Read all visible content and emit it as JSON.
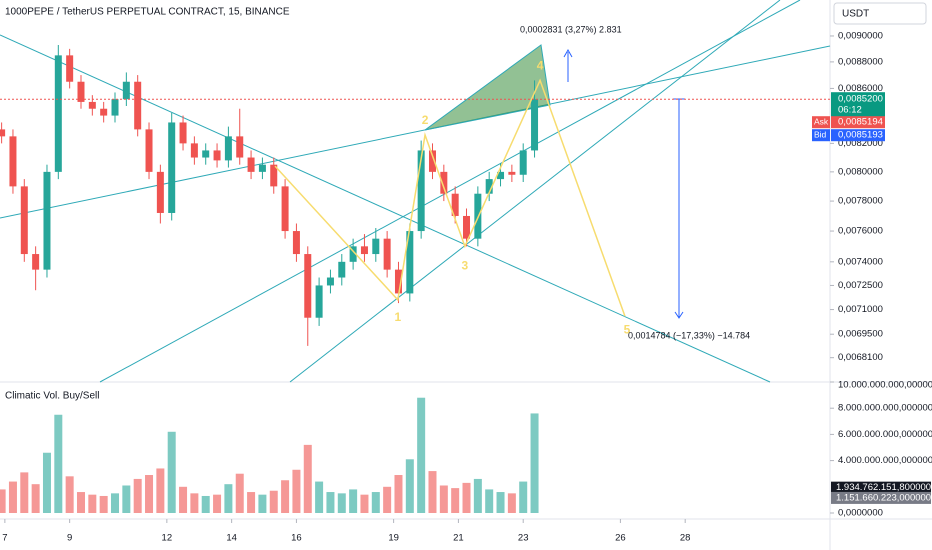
{
  "ui": {
    "currency": "USDT"
  },
  "chart_data": [
    {
      "type": "candlestick",
      "title": "1000PEPE / TetherUS PERPETUAL CONTRACT, 15, BINANCE",
      "x": [
        6.9,
        7.25,
        7.6,
        7.95,
        8.3,
        8.65,
        9.0,
        9.35,
        9.7,
        10.05,
        10.4,
        10.75,
        11.1,
        11.45,
        11.8,
        12.15,
        12.5,
        12.85,
        13.2,
        13.55,
        13.9,
        14.25,
        14.6,
        14.95,
        15.3,
        15.65,
        16.0,
        16.35,
        16.7,
        17.05,
        17.4,
        17.75,
        18.1,
        18.45,
        18.8,
        19.15,
        19.5,
        19.85,
        20.2,
        20.55,
        20.9,
        21.25,
        21.6,
        21.95,
        22.3,
        22.65,
        23.0,
        23.35
      ],
      "open": [
        0.0083,
        0.00825,
        0.0079,
        0.00745,
        0.00735,
        0.008,
        0.00885,
        0.00865,
        0.0085,
        0.00845,
        0.0084,
        0.00852,
        0.00865,
        0.0083,
        0.008,
        0.00772,
        0.00835,
        0.0082,
        0.0081,
        0.00815,
        0.00808,
        0.00825,
        0.0081,
        0.008,
        0.00805,
        0.0079,
        0.0076,
        0.00745,
        0.00705,
        0.00725,
        0.0073,
        0.0074,
        0.0075,
        0.00745,
        0.00755,
        0.00735,
        0.0072,
        0.0076,
        0.00815,
        0.008,
        0.00785,
        0.0077,
        0.00755,
        0.00785,
        0.00795,
        0.008,
        0.00798,
        0.00815
      ],
      "high": [
        0.00835,
        0.0083,
        0.00795,
        0.0075,
        0.00805,
        0.00893,
        0.0089,
        0.0087,
        0.00855,
        0.0085,
        0.00857,
        0.00872,
        0.0087,
        0.00835,
        0.00805,
        0.00842,
        0.0084,
        0.00825,
        0.0082,
        0.0082,
        0.00832,
        0.00845,
        0.00815,
        0.0081,
        0.0081,
        0.00795,
        0.00765,
        0.0075,
        0.0073,
        0.00735,
        0.00745,
        0.00755,
        0.00758,
        0.00762,
        0.0076,
        0.0074,
        0.00765,
        0.00822,
        0.0082,
        0.00805,
        0.0079,
        0.00775,
        0.0079,
        0.008,
        0.00806,
        0.00805,
        0.0082,
        0.00866
      ],
      "low": [
        0.0082,
        0.00785,
        0.0074,
        0.00722,
        0.0073,
        0.00795,
        0.0086,
        0.00845,
        0.0084,
        0.00835,
        0.00835,
        0.00847,
        0.00825,
        0.00795,
        0.00765,
        0.00767,
        0.00815,
        0.00805,
        0.00805,
        0.00803,
        0.00803,
        0.00805,
        0.00795,
        0.00795,
        0.00785,
        0.00755,
        0.0074,
        0.00688,
        0.007,
        0.0072,
        0.00725,
        0.00735,
        0.0074,
        0.0074,
        0.0073,
        0.00714,
        0.00715,
        0.00755,
        0.00795,
        0.0078,
        0.00765,
        0.0075,
        0.0075,
        0.0078,
        0.0079,
        0.00793,
        0.00793,
        0.0081
      ],
      "close": [
        0.00825,
        0.0079,
        0.00745,
        0.00735,
        0.008,
        0.00885,
        0.00865,
        0.0085,
        0.00845,
        0.0084,
        0.00852,
        0.00865,
        0.0083,
        0.008,
        0.00772,
        0.00835,
        0.0082,
        0.0081,
        0.00815,
        0.00808,
        0.00825,
        0.0081,
        0.008,
        0.00805,
        0.0079,
        0.0076,
        0.00745,
        0.00705,
        0.00725,
        0.0073,
        0.0074,
        0.0075,
        0.00745,
        0.00755,
        0.00735,
        0.0072,
        0.0076,
        0.00815,
        0.008,
        0.00785,
        0.0077,
        0.00755,
        0.00785,
        0.00795,
        0.008,
        0.00798,
        0.00815,
        0.00852
      ],
      "colors": {
        "up": "#26a69a",
        "down": "#ef5350"
      },
      "xlim": [
        6.85,
        32.47
      ],
      "ylim": [
        0.006668,
        0.009285
      ],
      "log_scale": true,
      "grid": false,
      "yticks": [
        {
          "value": 0.009,
          "label": "0,0090000"
        },
        {
          "value": 0.0088,
          "label": "0,0088000"
        },
        {
          "value": 0.0086,
          "label": "0,0086000"
        },
        {
          "value": 0.0082,
          "label": "0,0082000"
        },
        {
          "value": 0.008,
          "label": "0,0080000"
        },
        {
          "value": 0.0078,
          "label": "0,0078000"
        },
        {
          "value": 0.0076,
          "label": "0,0076000"
        },
        {
          "value": 0.0074,
          "label": "0,0074000"
        },
        {
          "value": 0.00725,
          "label": "0,0072500"
        },
        {
          "value": 0.0071,
          "label": "0,0071000"
        },
        {
          "value": 0.00695,
          "label": "0,0069500"
        },
        {
          "value": 0.00681,
          "label": "0,0068100"
        }
      ],
      "last_price": {
        "value": 0.00852,
        "label": "0,0085200",
        "countdown": "06:12",
        "color": "#089981"
      },
      "markers": [
        {
          "name": "Ask",
          "value": 0.0085194,
          "label": "0,0085194",
          "color": "#ef5350"
        },
        {
          "name": "Bid",
          "value": 0.0085193,
          "label": "0,0085193",
          "color": "#2962ff"
        }
      ],
      "wave": {
        "x": [
          15.34,
          19.13,
          19.97,
          21.2,
          23.52,
          26.14
        ],
        "y": [
          0.00804,
          0.00716,
          0.00826,
          0.0075,
          0.00866,
          0.00706
        ],
        "labels": [
          null,
          "1",
          "2",
          "3",
          "4",
          "5"
        ],
        "color": "#f7dc6f"
      },
      "annotations": [
        "0,0002831 (3,27%) 2.831",
        "0,0014784 (−17,33%) −14.784"
      ]
    },
    {
      "type": "bar",
      "title": "Climatic Vol. Buy/Sell",
      "values": [
        1800000000,
        2400000000,
        3100000000,
        2200000000,
        4600000000,
        7500000000,
        2800000000,
        1600000000,
        1400000000,
        1300000000,
        1500000000,
        2100000000,
        2600000000,
        2900000000,
        3400000000,
        6200000000,
        2000000000,
        1500000000,
        1300000000,
        1400000000,
        2200000000,
        3000000000,
        1600000000,
        1400000000,
        1700000000,
        2500000000,
        3300000000,
        5200000000,
        2400000000,
        1600000000,
        1500000000,
        1800000000,
        1400000000,
        1600000000,
        2000000000,
        2900000000,
        4100000000,
        8800000000,
        3200000000,
        2100000000,
        1900000000,
        2300000000,
        2600000000,
        1800000000,
        1600000000,
        1500000000,
        2400000000,
        7600000000
      ],
      "ylim": [
        0,
        10000000000
      ],
      "yticks": [
        {
          "value": 10000000000,
          "label": "10.000.000.000,0000000"
        },
        {
          "value": 8000000000,
          "label": "8.000.000.000,0000000"
        },
        {
          "value": 6000000000,
          "label": "6.000.000.000,0000000"
        },
        {
          "value": 4000000000,
          "label": "4.000.000.000,0000000"
        },
        {
          "value": 0,
          "label": "0,0000000"
        }
      ],
      "xticks": [
        7,
        9,
        12,
        14,
        16,
        19,
        21,
        23,
        26,
        28
      ],
      "markers": [
        {
          "value": 1934762151.8,
          "label": "1.934.762.151,8000000",
          "color": "#131722"
        },
        {
          "value": 1151660223,
          "label": "1.151.660.223,0000000",
          "color": "#787b86"
        }
      ]
    }
  ]
}
